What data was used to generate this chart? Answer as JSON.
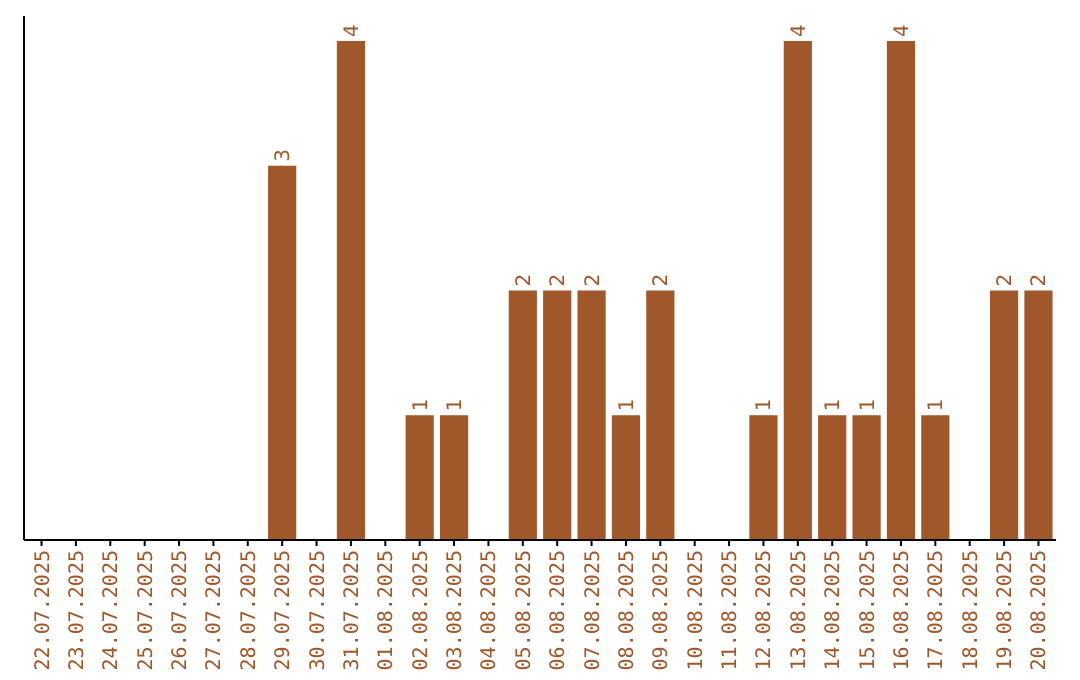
{
  "chart_data": {
    "type": "bar",
    "categories": [
      "22.07.2025",
      "23.07.2025",
      "24.07.2025",
      "25.07.2025",
      "26.07.2025",
      "27.07.2025",
      "28.07.2025",
      "29.07.2025",
      "30.07.2025",
      "31.07.2025",
      "01.08.2025",
      "02.08.2025",
      "03.08.2025",
      "04.08.2025",
      "05.08.2025",
      "06.08.2025",
      "07.08.2025",
      "08.08.2025",
      "09.08.2025",
      "10.08.2025",
      "11.08.2025",
      "12.08.2025",
      "13.08.2025",
      "14.08.2025",
      "15.08.2025",
      "16.08.2025",
      "17.08.2025",
      "18.08.2025",
      "19.08.2025",
      "20.08.2025"
    ],
    "values": [
      0,
      0,
      0,
      0,
      0,
      0,
      0,
      3,
      0,
      4,
      0,
      1,
      1,
      0,
      2,
      2,
      2,
      1,
      2,
      0,
      0,
      1,
      4,
      1,
      1,
      4,
      1,
      0,
      2,
      2
    ],
    "value_labels": [
      null,
      null,
      null,
      null,
      null,
      null,
      null,
      "3",
      null,
      "4",
      null,
      "1",
      "1",
      null,
      "2",
      "2",
      "2",
      "1",
      "2",
      null,
      null,
      "1",
      "4",
      "1",
      "1",
      "4",
      "1",
      null,
      "2",
      "2"
    ],
    "color": "#a0582a",
    "ylim": [
      0,
      4.2
    ],
    "tick_labels": "x"
  }
}
